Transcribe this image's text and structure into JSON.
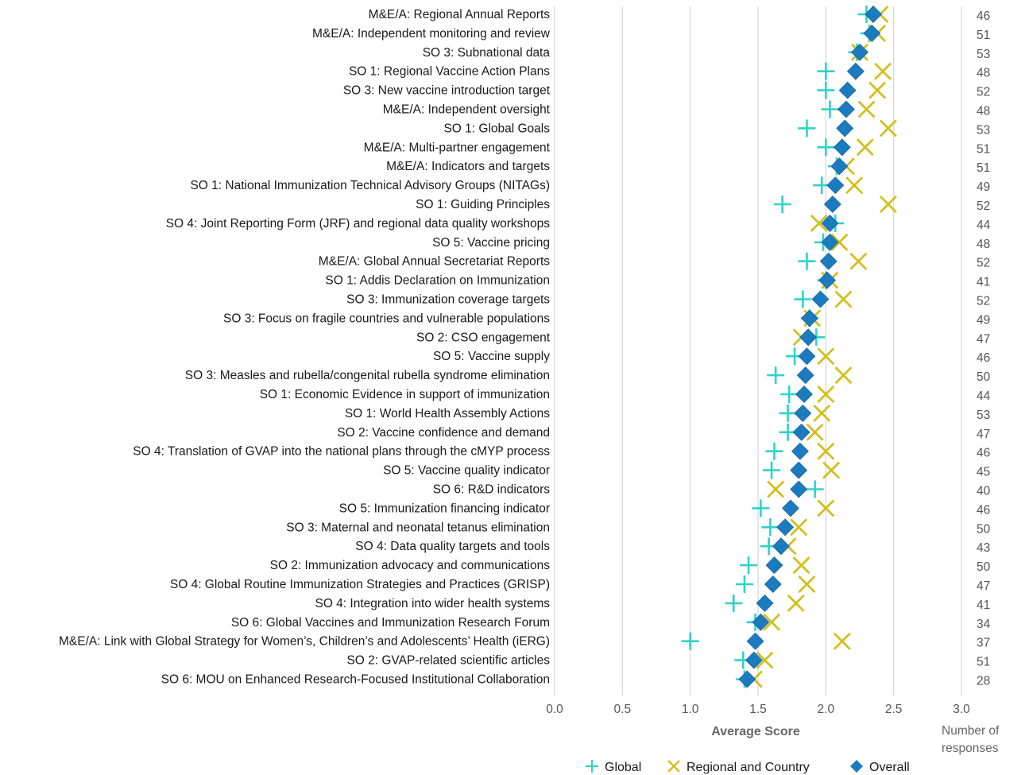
{
  "chart_data": {
    "type": "scatter",
    "xlabel": "Average Score",
    "right_label_line1": "Number of",
    "right_label_line2": "responses",
    "xlim": [
      0,
      3
    ],
    "xticks": [
      "0.0",
      "0.5",
      "1.0",
      "1.5",
      "2.0",
      "2.5",
      "3.0"
    ],
    "grid": "vertical",
    "legend_placement": "bottom",
    "colors": {
      "Global": "#2ed3c8",
      "Regional and Country": "#d4bf1e",
      "Overall": "#1c7bbf"
    },
    "series": [
      {
        "name": "Global",
        "marker": "plus",
        "values": [
          2.3,
          2.32,
          2.23,
          2.0,
          2.0,
          2.03,
          1.86,
          2.0,
          2.08,
          1.97,
          1.68,
          2.07,
          1.98,
          1.86,
          2.0,
          1.83,
          1.88,
          1.93,
          1.77,
          1.63,
          1.73,
          1.72,
          1.72,
          1.62,
          1.6,
          1.92,
          1.52,
          1.59,
          1.58,
          1.43,
          1.4,
          1.32,
          1.48,
          1.0,
          1.39,
          1.4
        ]
      },
      {
        "name": "Regional and Country",
        "marker": "x",
        "values": [
          2.4,
          2.38,
          2.25,
          2.42,
          2.38,
          2.3,
          2.46,
          2.29,
          2.15,
          2.21,
          2.46,
          1.95,
          2.1,
          2.24,
          2.03,
          2.13,
          1.9,
          1.82,
          2.0,
          2.13,
          2.0,
          1.97,
          1.92,
          2.0,
          2.04,
          1.63,
          2.0,
          1.8,
          1.72,
          1.82,
          1.86,
          1.78,
          1.6,
          2.12,
          1.55,
          1.47
        ]
      },
      {
        "name": "Overall",
        "marker": "diamond",
        "values": [
          2.35,
          2.34,
          2.25,
          2.22,
          2.16,
          2.15,
          2.14,
          2.12,
          2.1,
          2.07,
          2.05,
          2.03,
          2.03,
          2.02,
          2.01,
          1.96,
          1.88,
          1.87,
          1.86,
          1.85,
          1.84,
          1.83,
          1.82,
          1.81,
          1.8,
          1.8,
          1.74,
          1.7,
          1.67,
          1.62,
          1.61,
          1.55,
          1.52,
          1.48,
          1.47,
          1.42
        ]
      }
    ],
    "categories": [
      "M&E/A: Regional Annual Reports",
      "M&E/A: Independent monitoring and review",
      "SO 3: Subnational data",
      "SO 1: Regional Vaccine Action Plans",
      "SO 3: New vaccine introduction target",
      "M&E/A: Independent oversight",
      "SO 1: Global Goals",
      "M&E/A: Multi-partner engagement",
      "M&E/A: Indicators and targets",
      "SO 1: National Immunization Technical Advisory Groups (NITAGs)",
      "SO 1: Guiding Principles",
      "SO 4: Joint Reporting Form (JRF) and regional data quality workshops",
      "SO 5: Vaccine pricing",
      "M&E/A: Global Annual Secretariat Reports",
      "SO 1: Addis Declaration on Immunization",
      "SO 3: Immunization coverage targets",
      "SO 3: Focus on fragile countries and vulnerable populations",
      "SO 2: CSO engagement",
      "SO 5: Vaccine supply",
      "SO 3: Measles and rubella/congenital rubella syndrome elimination",
      "SO 1: Economic Evidence in support of immunization",
      "SO 1: World Health Assembly Actions",
      "SO 2: Vaccine confidence and demand",
      "SO 4: Translation of GVAP into the national plans through the cMYP process",
      "SO 5: Vaccine quality indicator",
      "SO 6: R&D indicators",
      "SO 5: Immunization financing indicator",
      "SO 3: Maternal and neonatal tetanus elimination",
      "SO 4: Data quality targets and tools",
      "SO 2: Immunization advocacy and communications",
      "SO 4: Global Routine Immunization Strategies and Practices (GRISP)",
      "SO 4: Integration into wider health systems",
      "SO 6: Global Vaccines and Immunization Research Forum",
      "M&E/A: Link with Global Strategy for Women’s, Children’s and Adolescents’ Health (iERG)",
      "SO 2: GVAP-related scientific articles",
      "SO 6: MOU on Enhanced Research-Focused Institutional Collaboration"
    ],
    "responses": [
      "46",
      "51",
      "53",
      "48",
      "52",
      "48",
      "53",
      "51",
      "51",
      "49",
      "52",
      "44",
      "48",
      "52",
      "41",
      "52",
      "49",
      "47",
      "46",
      "50",
      "44",
      "53",
      "47",
      "46",
      "45",
      "40",
      "46",
      "50",
      "43",
      "50",
      "47",
      "41",
      "34",
      "37",
      "51",
      "28"
    ]
  }
}
